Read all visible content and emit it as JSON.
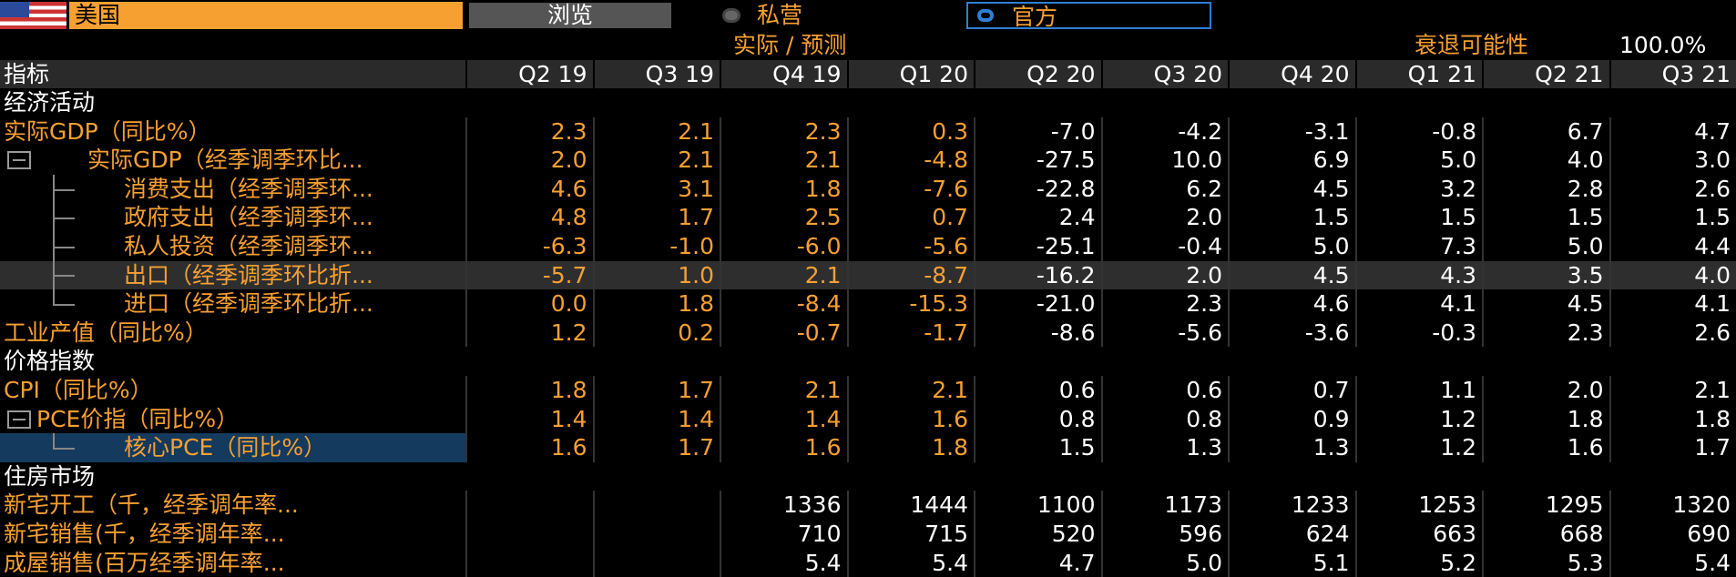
{
  "header": {
    "country": "美国",
    "browse": "浏览",
    "options": [
      "私营",
      "官方"
    ],
    "actual_forecast": "实际 / 预测",
    "recession_label": "衰退可能性",
    "recession_value": "100.0%"
  },
  "table": {
    "header_label": "指标",
    "columns": [
      "Q2 19",
      "Q3 19",
      "Q4 19",
      "Q1 20",
      "Q2 20",
      "Q3 20",
      "Q4 20",
      "Q1 21",
      "Q2 21",
      "Q3 21"
    ],
    "rows": [
      {
        "label": "经济活动"
      },
      {
        "label": "实际GDP（同比%）",
        "values": [
          "2.3",
          "2.1",
          "2.3",
          "0.3",
          "-7.0",
          "-4.2",
          "-3.1",
          "-0.8",
          "6.7",
          "4.7"
        ]
      },
      {
        "label": "实际GDP（经季调季环比...",
        "values": [
          "2.0",
          "2.1",
          "2.1",
          "-4.8",
          "-27.5",
          "10.0",
          "6.9",
          "5.0",
          "4.0",
          "3.0"
        ]
      },
      {
        "label": "消费支出（经季调季环...",
        "values": [
          "4.6",
          "3.1",
          "1.8",
          "-7.6",
          "-22.8",
          "6.2",
          "4.5",
          "3.2",
          "2.8",
          "2.6"
        ]
      },
      {
        "label": "政府支出（经季调季环...",
        "values": [
          "4.8",
          "1.7",
          "2.5",
          "0.7",
          "2.4",
          "2.0",
          "1.5",
          "1.5",
          "1.5",
          "1.5"
        ]
      },
      {
        "label": "私人投资（经季调季环...",
        "values": [
          "-6.3",
          "-1.0",
          "-6.0",
          "-5.6",
          "-25.1",
          "-0.4",
          "5.0",
          "7.3",
          "5.0",
          "4.4"
        ]
      },
      {
        "label": "出口（经季调季环比折...",
        "values": [
          "-5.7",
          "1.0",
          "2.1",
          "-8.7",
          "-16.2",
          "2.0",
          "4.5",
          "4.3",
          "3.5",
          "4.0"
        ]
      },
      {
        "label": "进口（经季调季环比折...",
        "values": [
          "0.0",
          "1.8",
          "-8.4",
          "-15.3",
          "-21.0",
          "2.3",
          "4.6",
          "4.1",
          "4.5",
          "4.1"
        ]
      },
      {
        "label": "工业产值（同比%）",
        "values": [
          "1.2",
          "0.2",
          "-0.7",
          "-1.7",
          "-8.6",
          "-5.6",
          "-3.6",
          "-0.3",
          "2.3",
          "2.6"
        ]
      },
      {
        "label": "价格指数"
      },
      {
        "label": "CPI（同比%）",
        "values": [
          "1.8",
          "1.7",
          "2.1",
          "2.1",
          "0.6",
          "0.6",
          "0.7",
          "1.1",
          "2.0",
          "2.1"
        ]
      },
      {
        "label": "PCE价指（同比%）",
        "values": [
          "1.4",
          "1.4",
          "1.4",
          "1.6",
          "0.8",
          "0.8",
          "0.9",
          "1.2",
          "1.8",
          "1.8"
        ]
      },
      {
        "label": "核心PCE（同比%）",
        "values": [
          "1.6",
          "1.7",
          "1.6",
          "1.8",
          "1.5",
          "1.3",
          "1.3",
          "1.2",
          "1.6",
          "1.7"
        ]
      },
      {
        "label": "住房市场"
      },
      {
        "label": "新宅开工（千，经季调年率...",
        "values": [
          null,
          null,
          "1336",
          "1444",
          "1100",
          "1173",
          "1233",
          "1253",
          "1295",
          "1320"
        ]
      },
      {
        "label": "新宅销售(千，经季调年率...",
        "values": [
          null,
          null,
          "710",
          "715",
          "520",
          "596",
          "624",
          "663",
          "668",
          "690"
        ]
      },
      {
        "label": "成屋销售(百万经季调年率...",
        "values": [
          null,
          null,
          "5.4",
          "5.4",
          "4.7",
          "5.0",
          "5.1",
          "5.2",
          "5.3",
          "5.4"
        ]
      }
    ]
  }
}
